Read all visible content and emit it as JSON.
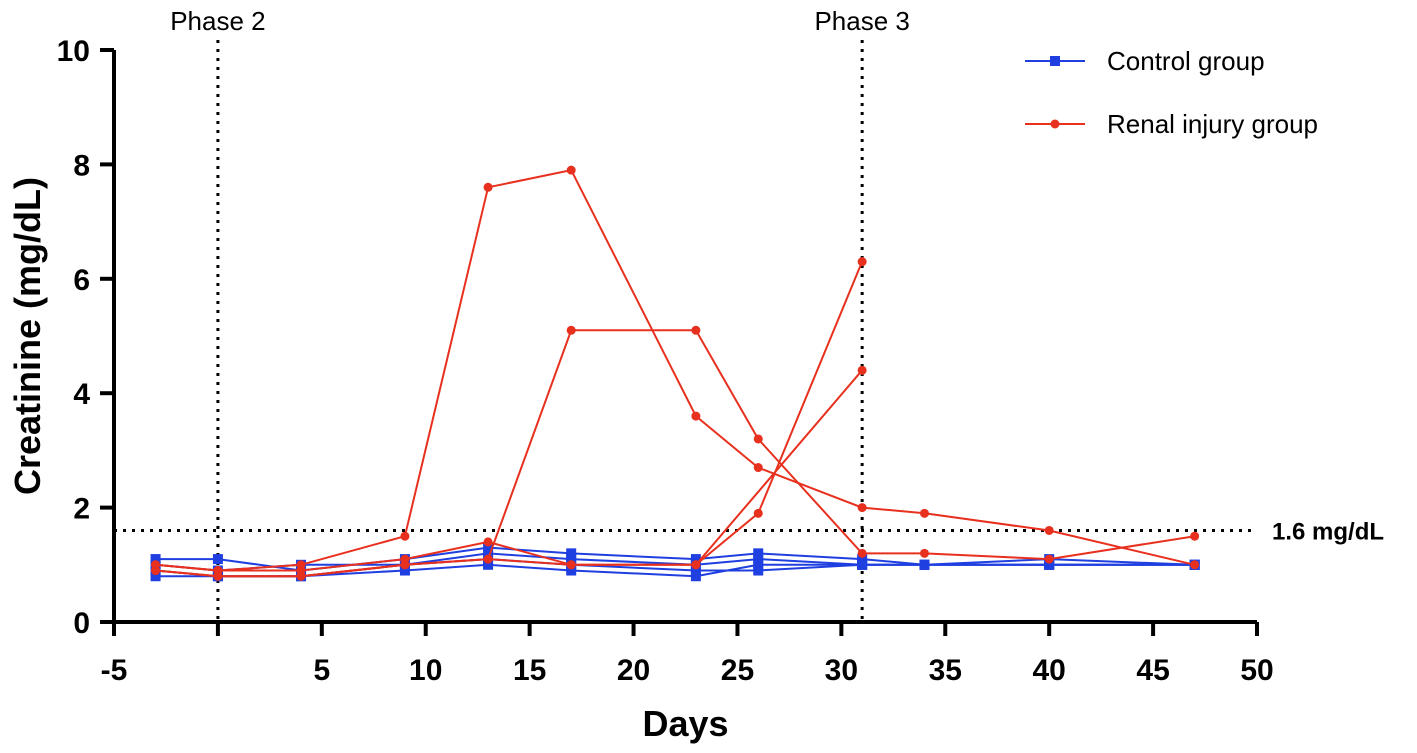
{
  "chart_data": {
    "type": "line",
    "title": "",
    "xlabel": "Days",
    "ylabel": "Creatinine (mg/dL)",
    "xlim": [
      -5,
      50
    ],
    "ylim": [
      0,
      10
    ],
    "x_ticks": [
      -5,
      5,
      10,
      15,
      20,
      25,
      30,
      35,
      40,
      45,
      50
    ],
    "x_tick_labels": [
      "-5",
      "5",
      "10",
      "15",
      "20",
      "25",
      "30",
      "35",
      "40",
      "45",
      "50"
    ],
    "y_ticks": [
      0,
      2,
      4,
      6,
      8,
      10
    ],
    "y_tick_labels": [
      "0",
      "2",
      "4",
      "6",
      "8",
      "10"
    ],
    "grid": false,
    "legend_position": "top-right",
    "colors": {
      "control": "#1f3fe0",
      "renal": "#e8301e"
    },
    "legend": [
      {
        "name": "Control group",
        "color": "#1f3fe0",
        "marker": "square"
      },
      {
        "name": "Renal injury group",
        "color": "#e8301e",
        "marker": "circle"
      }
    ],
    "vlines": [
      {
        "x": 0,
        "label": "Phase 2"
      },
      {
        "x": 31,
        "label": "Phase 3"
      }
    ],
    "hline": {
      "y": 1.6,
      "label": "1.6 mg/dL"
    },
    "series": [
      {
        "name": "Control group",
        "group": "control",
        "x": [
          -3,
          0,
          4,
          9,
          13,
          17,
          23,
          26,
          31,
          34,
          40,
          47
        ],
        "y": [
          1.1,
          1.1,
          0.9,
          1.1,
          1.3,
          1.2,
          1.1,
          1.2,
          1.1,
          1.0,
          1.1,
          1.0
        ]
      },
      {
        "name": "Control group",
        "group": "control",
        "x": [
          -3,
          0,
          4,
          9,
          13,
          17,
          23,
          26,
          31,
          34,
          40,
          47
        ],
        "y": [
          1.0,
          0.9,
          1.0,
          1.0,
          1.2,
          1.1,
          1.0,
          1.1,
          1.0,
          1.0,
          1.0,
          1.0
        ]
      },
      {
        "name": "Control group",
        "group": "control",
        "x": [
          -3,
          0,
          4,
          9,
          13,
          17,
          23,
          26,
          31,
          34,
          40,
          47
        ],
        "y": [
          0.9,
          0.8,
          0.8,
          1.0,
          1.1,
          1.0,
          0.9,
          0.9,
          1.0,
          1.0,
          1.0,
          1.0
        ]
      },
      {
        "name": "Control group",
        "group": "control",
        "x": [
          -3,
          0,
          4,
          9,
          13,
          17,
          23,
          26,
          31,
          34,
          40,
          47
        ],
        "y": [
          0.8,
          0.8,
          0.8,
          0.9,
          1.0,
          0.9,
          0.8,
          1.0,
          1.0,
          1.0,
          1.0,
          1.0
        ]
      },
      {
        "name": "Renal injury group",
        "group": "renal",
        "x": [
          -3,
          0,
          4,
          9,
          13,
          17,
          23,
          26,
          31,
          34,
          40,
          47
        ],
        "y": [
          1.0,
          0.9,
          1.0,
          1.5,
          7.6,
          7.9,
          3.6,
          2.7,
          2.0,
          1.9,
          1.6,
          1.0
        ]
      },
      {
        "name": "Renal injury group",
        "group": "renal",
        "x": [
          -3,
          0,
          4,
          9,
          13,
          17,
          23,
          26,
          31,
          34,
          40,
          47
        ],
        "y": [
          0.9,
          0.8,
          0.8,
          1.0,
          1.1,
          5.1,
          5.1,
          3.2,
          1.2,
          1.2,
          1.1,
          1.5
        ]
      },
      {
        "name": "Renal injury group",
        "group": "renal",
        "x": [
          -3,
          0,
          4,
          9,
          13,
          17,
          23,
          26,
          31
        ],
        "y": [
          1.0,
          0.9,
          0.9,
          1.1,
          1.4,
          1.0,
          1.0,
          1.9,
          6.3
        ]
      },
      {
        "name": "Renal injury group",
        "group": "renal",
        "x": [
          -3,
          0,
          4,
          9,
          13,
          17,
          23,
          31
        ],
        "y": [
          0.9,
          0.8,
          0.8,
          1.0,
          1.1,
          1.0,
          1.0,
          4.4
        ]
      }
    ]
  }
}
